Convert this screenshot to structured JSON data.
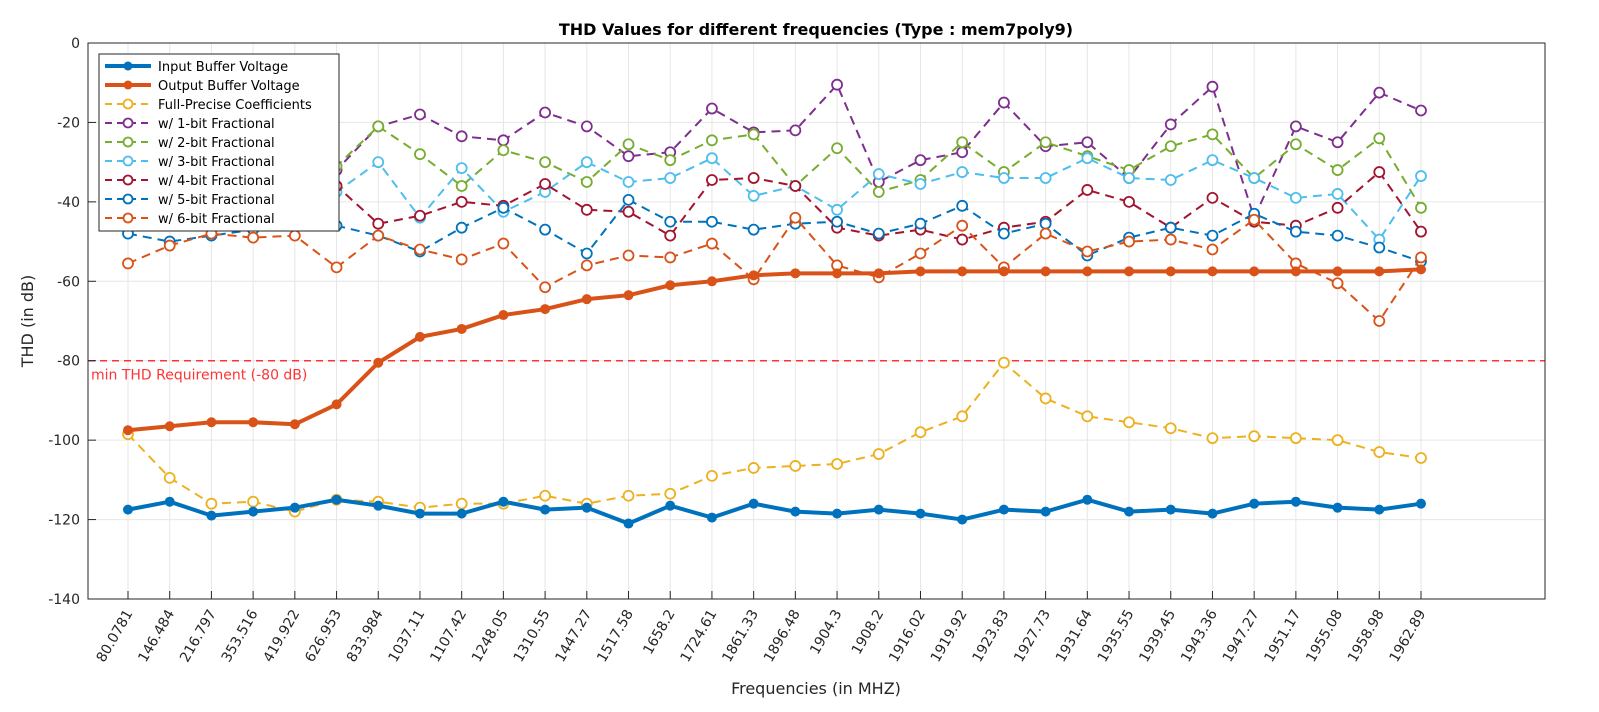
{
  "chart_data": {
    "type": "line",
    "title": "THD Values for different frequencies (Type : mem7poly9)",
    "xlabel": "Frequencies (in MHZ)",
    "ylabel": "THD (in dB)",
    "ylim": [
      -140,
      0
    ],
    "yticks": [
      0,
      -20,
      -40,
      -60,
      -80,
      -100,
      -120,
      -140
    ],
    "grid": true,
    "legend_position": "top-left",
    "categories": [
      "80.0781",
      "146.484",
      "216.797",
      "353.516",
      "419.922",
      "626.953",
      "833.984",
      "1037.11",
      "1107.42",
      "1248.05",
      "1310.55",
      "1447.27",
      "1517.58",
      "1658.2",
      "1724.61",
      "1861.33",
      "1896.48",
      "1904.3",
      "1908.2",
      "1916.02",
      "1919.92",
      "1923.83",
      "1927.73",
      "1931.64",
      "1935.55",
      "1939.45",
      "1943.36",
      "1947.27",
      "1951.17",
      "1955.08",
      "1958.98",
      "1962.89"
    ],
    "series": [
      {
        "name": "Input Buffer Voltage",
        "color": "#0072BD",
        "style": "solid",
        "width": 4,
        "marker": "filled",
        "values": [
          -117.5,
          -115.5,
          -119,
          -118,
          -117,
          -115,
          -116.5,
          -118.5,
          -118.5,
          -115.5,
          -117.5,
          -117,
          -121,
          -116.5,
          -119.5,
          -116,
          -118,
          -118.5,
          -117.5,
          -118.5,
          -120,
          -117.5,
          -118,
          -115,
          -118,
          -117.5,
          -118.5,
          -116,
          -115.5,
          -117,
          -117.5,
          -116
        ]
      },
      {
        "name": "Output Buffer Voltage",
        "color": "#D95319",
        "style": "solid",
        "width": 4,
        "marker": "filled",
        "values": [
          -97.5,
          -96.5,
          -95.5,
          -95.5,
          -96,
          -91,
          -80.5,
          -74,
          -72,
          -68.5,
          -67,
          -64.5,
          -63.5,
          -61,
          -60,
          -58.5,
          -58,
          -58,
          -58,
          -57.5,
          -57.5,
          -57.5,
          -57.5,
          -57.5,
          -57.5,
          -57.5,
          -57.5,
          -57.5,
          -57.5,
          -57.5,
          -57.5,
          -57
        ]
      },
      {
        "name": "Full-Precise Coefficients",
        "color": "#EDB120",
        "style": "dashed",
        "width": 2,
        "marker": "open",
        "values": [
          -98.5,
          -109.5,
          -116,
          -115.5,
          -118,
          -115,
          -115.5,
          -117,
          -116,
          -116,
          -114,
          -116,
          -114,
          -113.5,
          -109,
          -107,
          -106.5,
          -106,
          -103.5,
          -98,
          -94,
          -80.5,
          -89.5,
          -94,
          -95.5,
          -97,
          -99.5,
          -99,
          -99.5,
          -100,
          -103,
          -104.5
        ]
      },
      {
        "name": "w/ 1-bit Fractional",
        "color": "#7E2F8E",
        "style": "dashed",
        "width": 2,
        "marker": "open",
        "values": [
          -42,
          -40,
          -40,
          -38,
          -36,
          -32,
          -21,
          -18,
          -23.5,
          -24.5,
          -17.5,
          -21,
          -28.5,
          -27.5,
          -16.5,
          -22.5,
          -22,
          -10.5,
          -35,
          -29.5,
          -27.5,
          -15,
          -26,
          -25,
          -34,
          -20.5,
          -11,
          -44,
          -21,
          -25,
          -12.5,
          -17
        ]
      },
      {
        "name": "w/ 2-bit Fractional",
        "color": "#77AC30",
        "style": "dashed",
        "width": 2,
        "marker": "open",
        "values": [
          -40,
          -38,
          -36,
          -35,
          -34,
          -31,
          -21,
          -28,
          -36,
          -27,
          -30,
          -35,
          -25.5,
          -29.5,
          -24.5,
          -23,
          -36,
          -26.5,
          -37.5,
          -34.5,
          -25,
          -32.5,
          -25,
          -28.5,
          -32,
          -26,
          -23,
          -34,
          -25.5,
          -32,
          -24,
          -41.5
        ]
      },
      {
        "name": "w/ 3-bit Fractional",
        "color": "#4DBEEE",
        "style": "dashed",
        "width": 2,
        "marker": "open",
        "values": [
          -44,
          -42,
          -40,
          -39,
          -37,
          -37.5,
          -30,
          -44,
          -31.5,
          -42.5,
          -37.5,
          -30,
          -35,
          -34,
          -29,
          -38.5,
          -36,
          -42,
          -33,
          -35.5,
          -32.5,
          -34,
          -34,
          -29,
          -34,
          -34.5,
          -29.5,
          -34,
          -39,
          -38,
          -49.5,
          -33.5
        ]
      },
      {
        "name": "w/ 4-bit Fractional",
        "color": "#A2142F",
        "style": "dashed",
        "width": 2,
        "marker": "open",
        "values": [
          -45,
          -44,
          -43,
          -42,
          -40,
          -36,
          -45.5,
          -43.5,
          -40,
          -41,
          -35.5,
          -42,
          -42.5,
          -48.5,
          -34.5,
          -34,
          -36,
          -46.5,
          -48.5,
          -47,
          -49.5,
          -46.5,
          -45,
          -37,
          -40,
          -46.5,
          -39,
          -45,
          -46,
          -41.5,
          -32.5,
          -47.5
        ]
      },
      {
        "name": "w/ 5-bit Fractional",
        "color": "#0072BD",
        "style": "dashed",
        "width": 2,
        "marker": "open",
        "values": [
          -48,
          -50,
          -48.5,
          -47,
          -46,
          -46,
          -48.5,
          -52.5,
          -46.5,
          -41.5,
          -47,
          -53,
          -39.5,
          -45,
          -45,
          -47,
          -45.5,
          -45,
          -48,
          -45.5,
          -41,
          -48,
          -45.5,
          -53.5,
          -49,
          -46.5,
          -48.5,
          -43,
          -47.5,
          -48.5,
          -51.5,
          -55
        ]
      },
      {
        "name": "w/ 6-bit Fractional",
        "color": "#D95319",
        "style": "dashed",
        "width": 2,
        "marker": "open",
        "values": [
          -55.5,
          -51,
          -48,
          -49,
          -48.5,
          -56.5,
          -48.5,
          -52,
          -54.5,
          -50.5,
          -61.5,
          -56,
          -53.5,
          -54,
          -50.5,
          -59.5,
          -44,
          -56,
          -59,
          -53,
          -46,
          -56.5,
          -48,
          -52.5,
          -50,
          -49.5,
          -52,
          -44.5,
          -55.5,
          -60.5,
          -70,
          -54
        ]
      }
    ],
    "reference_line": {
      "value": -80,
      "label": "min THD Requirement (-80 dB)",
      "color": "#FF3333"
    }
  }
}
